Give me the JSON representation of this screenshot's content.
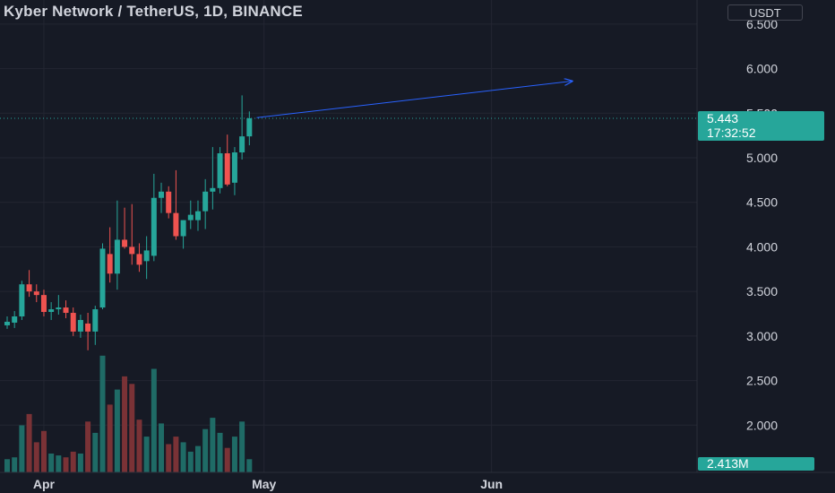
{
  "header": {
    "title": "Kyber Network / TetherUS, 1D, BINANCE",
    "currency": "USDT"
  },
  "price_label": {
    "price": "5.443",
    "countdown": "17:32:52",
    "partial_tick": "5.500"
  },
  "volume_label": "2.413M",
  "colors": {
    "background": "#161a25",
    "up": "#26a69a",
    "down": "#ef5350",
    "up_volume": "#1f6b66",
    "down_volume": "#7a3236",
    "grid": "#232632",
    "text": "#d1d4dc",
    "line": "#2962ff",
    "price_tag": "#26a69a"
  },
  "chart_data": {
    "type": "candlestick",
    "title": "Kyber Network / TetherUS, 1D, BINANCE",
    "y_axis": {
      "unit": "USDT",
      "ticks": [
        "2.000",
        "2.500",
        "3.000",
        "3.500",
        "4.000",
        "4.500",
        "5.000",
        "5.500",
        "6.000",
        "6.500"
      ],
      "range": [
        1.47,
        6.77
      ]
    },
    "x_axis": {
      "ticks": [
        "Apr",
        "May",
        "Jun"
      ],
      "range": [
        "2021-03-27",
        "2021-06-29"
      ]
    },
    "grid": true,
    "candles": [
      {
        "date": "2021-03-27",
        "open": 3.12,
        "high": 3.22,
        "low": 3.08,
        "close": 3.16,
        "volume": 0.35
      },
      {
        "date": "2021-03-28",
        "open": 3.15,
        "high": 3.28,
        "low": 3.09,
        "close": 3.22,
        "volume": 0.4
      },
      {
        "date": "2021-03-29",
        "open": 3.22,
        "high": 3.62,
        "low": 3.18,
        "close": 3.58,
        "volume": 1.25
      },
      {
        "date": "2021-03-30",
        "open": 3.58,
        "high": 3.74,
        "low": 3.44,
        "close": 3.5,
        "volume": 1.55
      },
      {
        "date": "2021-03-31",
        "open": 3.5,
        "high": 3.58,
        "low": 3.38,
        "close": 3.46,
        "volume": 0.8
      },
      {
        "date": "2021-04-01",
        "open": 3.46,
        "high": 3.52,
        "low": 3.22,
        "close": 3.27,
        "volume": 1.1
      },
      {
        "date": "2021-04-02",
        "open": 3.27,
        "high": 3.38,
        "low": 3.18,
        "close": 3.3,
        "volume": 0.5
      },
      {
        "date": "2021-04-03",
        "open": 3.3,
        "high": 3.46,
        "low": 3.24,
        "close": 3.32,
        "volume": 0.45
      },
      {
        "date": "2021-04-04",
        "open": 3.32,
        "high": 3.4,
        "low": 3.2,
        "close": 3.26,
        "volume": 0.4
      },
      {
        "date": "2021-04-05",
        "open": 3.26,
        "high": 3.32,
        "low": 3.0,
        "close": 3.05,
        "volume": 0.55
      },
      {
        "date": "2021-04-06",
        "open": 3.05,
        "high": 3.24,
        "low": 2.98,
        "close": 3.18,
        "volume": 0.5
      },
      {
        "date": "2021-04-07",
        "open": 3.14,
        "high": 3.26,
        "low": 2.84,
        "close": 3.05,
        "volume": 1.35
      },
      {
        "date": "2021-04-08",
        "open": 3.05,
        "high": 3.34,
        "low": 2.9,
        "close": 3.3,
        "volume": 1.05
      },
      {
        "date": "2021-04-09",
        "open": 3.32,
        "high": 4.04,
        "low": 3.3,
        "close": 3.98,
        "volume": 3.1
      },
      {
        "date": "2021-04-10",
        "open": 3.92,
        "high": 4.22,
        "low": 3.6,
        "close": 3.7,
        "volume": 1.8
      },
      {
        "date": "2021-04-11",
        "open": 3.7,
        "high": 4.52,
        "low": 3.52,
        "close": 4.08,
        "volume": 2.2
      },
      {
        "date": "2021-04-12",
        "open": 4.08,
        "high": 4.44,
        "low": 3.98,
        "close": 4.0,
        "volume": 2.55
      },
      {
        "date": "2021-04-13",
        "open": 4.0,
        "high": 4.48,
        "low": 3.8,
        "close": 3.92,
        "volume": 2.35
      },
      {
        "date": "2021-04-14",
        "open": 3.92,
        "high": 4.04,
        "low": 3.72,
        "close": 3.8,
        "volume": 1.4
      },
      {
        "date": "2021-04-15",
        "open": 3.84,
        "high": 4.12,
        "low": 3.64,
        "close": 3.96,
        "volume": 0.95
      },
      {
        "date": "2021-04-16",
        "open": 3.9,
        "high": 4.82,
        "low": 3.84,
        "close": 4.55,
        "volume": 2.75
      },
      {
        "date": "2021-04-17",
        "open": 4.55,
        "high": 4.72,
        "low": 4.38,
        "close": 4.62,
        "volume": 1.3
      },
      {
        "date": "2021-04-18",
        "open": 4.62,
        "high": 4.68,
        "low": 4.32,
        "close": 4.38,
        "volume": 0.75
      },
      {
        "date": "2021-04-19",
        "open": 4.38,
        "high": 4.86,
        "low": 4.08,
        "close": 4.12,
        "volume": 0.95
      },
      {
        "date": "2021-04-20",
        "open": 4.12,
        "high": 4.3,
        "low": 3.98,
        "close": 4.3,
        "volume": 0.8
      },
      {
        "date": "2021-04-21",
        "open": 4.3,
        "high": 4.52,
        "low": 4.2,
        "close": 4.36,
        "volume": 0.55
      },
      {
        "date": "2021-04-22",
        "open": 4.3,
        "high": 4.52,
        "low": 4.18,
        "close": 4.4,
        "volume": 0.7
      },
      {
        "date": "2021-04-23",
        "open": 4.4,
        "high": 4.76,
        "low": 4.2,
        "close": 4.62,
        "volume": 1.15
      },
      {
        "date": "2021-04-24",
        "open": 4.62,
        "high": 5.12,
        "low": 4.42,
        "close": 4.66,
        "volume": 1.45
      },
      {
        "date": "2021-04-25",
        "open": 4.66,
        "high": 5.12,
        "low": 4.6,
        "close": 5.05,
        "volume": 1.05
      },
      {
        "date": "2021-04-26",
        "open": 5.05,
        "high": 5.26,
        "low": 4.68,
        "close": 4.7,
        "volume": 0.65
      },
      {
        "date": "2021-04-27",
        "open": 4.72,
        "high": 5.12,
        "low": 4.58,
        "close": 5.06,
        "volume": 0.95
      },
      {
        "date": "2021-04-28",
        "open": 5.06,
        "high": 5.7,
        "low": 4.98,
        "close": 5.24,
        "volume": 1.35
      },
      {
        "date": "2021-04-29",
        "open": 5.24,
        "high": 5.52,
        "low": 5.14,
        "close": 5.443,
        "volume": 0.35
      }
    ],
    "trend_line": {
      "start": {
        "date": "2021-04-30",
        "price": 5.45
      },
      "end": {
        "date": "2021-06-12",
        "price": 5.86
      }
    },
    "last_price": 5.443,
    "last_volume": "2.413M"
  }
}
